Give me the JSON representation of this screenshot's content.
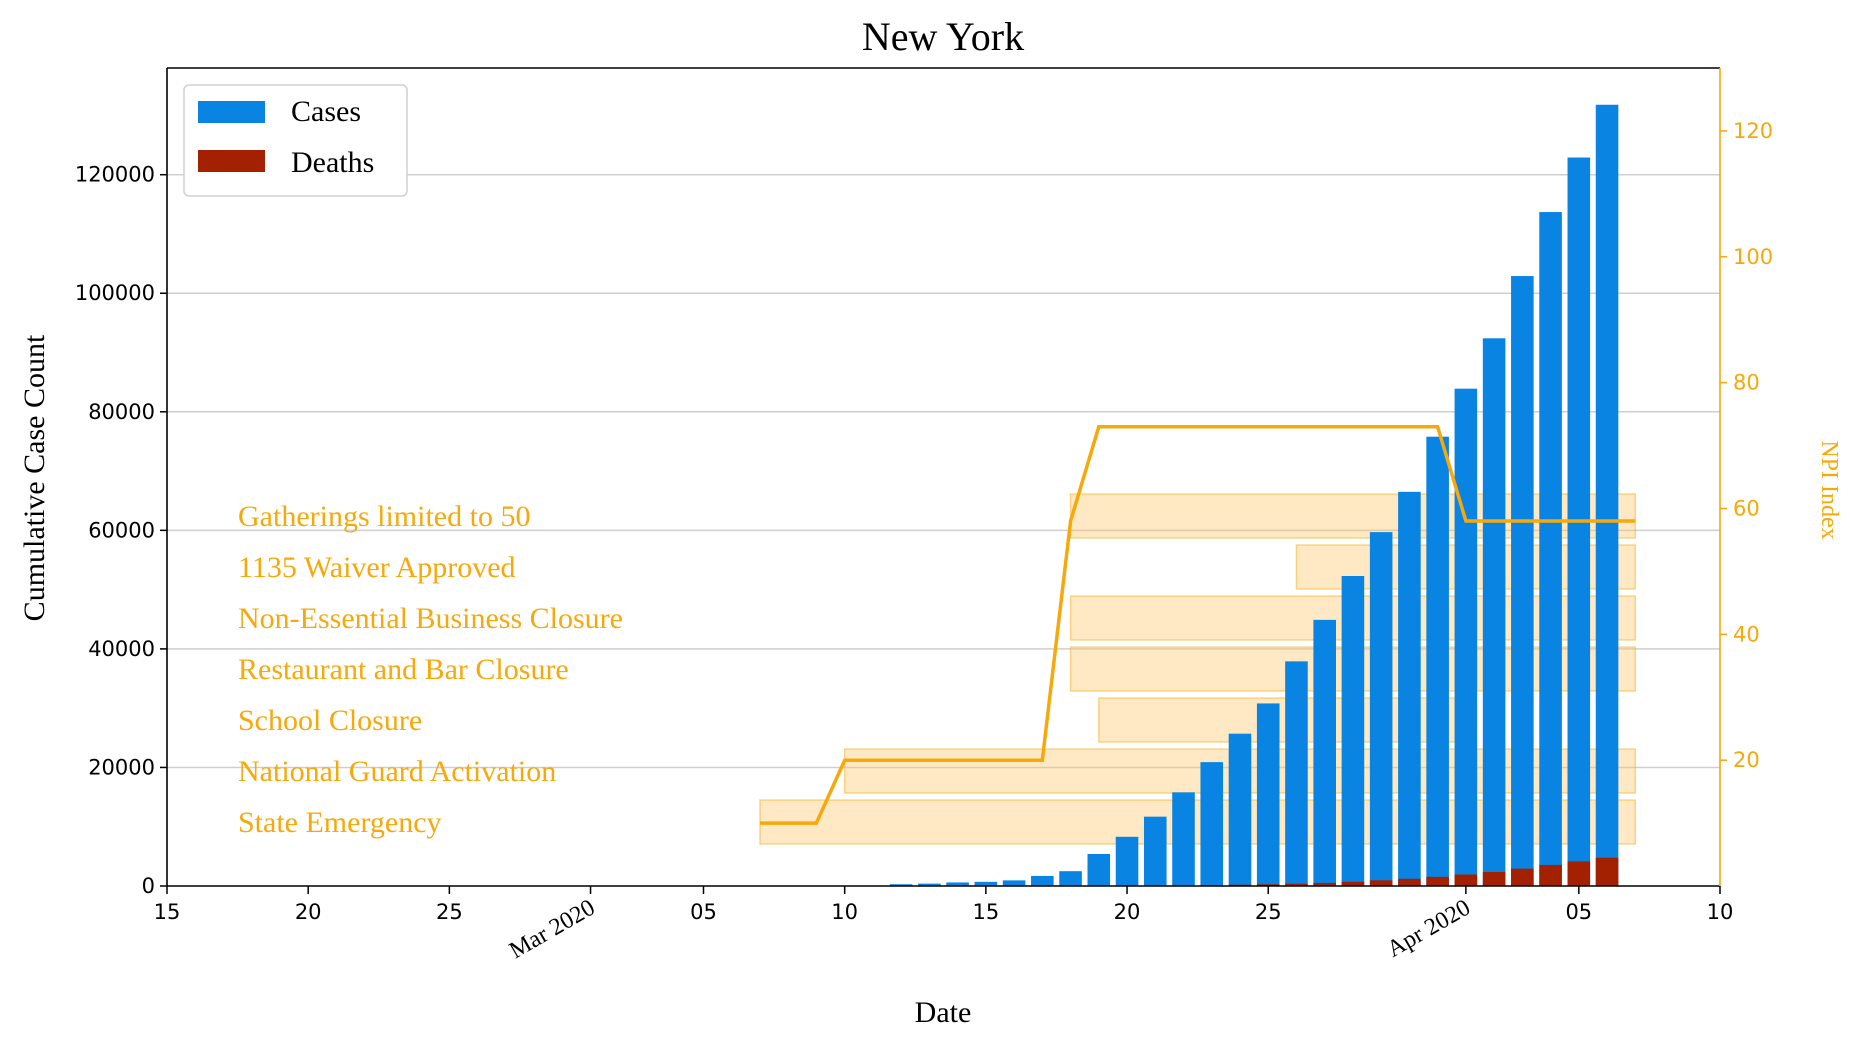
{
  "chart_data": {
    "type": "bar",
    "title": "New York",
    "xlabel": "Date",
    "ylabel": "Cumulative Case Count",
    "y2label": "NPI Index",
    "ylim": [
      0,
      138000
    ],
    "y2lim": [
      0,
      130
    ],
    "yticks": [
      0,
      20000,
      40000,
      60000,
      80000,
      100000,
      120000
    ],
    "y2ticks": [
      20,
      40,
      60,
      80,
      100,
      120
    ],
    "xlim": [
      "2020-02-15",
      "2020-04-10"
    ],
    "xticks": [
      {
        "date": "2020-02-15",
        "label": "15"
      },
      {
        "date": "2020-02-20",
        "label": "20"
      },
      {
        "date": "2020-02-25",
        "label": "25"
      },
      {
        "date": "2020-03-01",
        "label": "Mar 2020"
      },
      {
        "date": "2020-03-05",
        "label": "05"
      },
      {
        "date": "2020-03-10",
        "label": "10"
      },
      {
        "date": "2020-03-15",
        "label": "15"
      },
      {
        "date": "2020-03-20",
        "label": "20"
      },
      {
        "date": "2020-03-25",
        "label": "25"
      },
      {
        "date": "2020-04-01",
        "label": "Apr 2020"
      },
      {
        "date": "2020-04-05",
        "label": "05"
      },
      {
        "date": "2020-04-10",
        "label": "10"
      }
    ],
    "grid": "horizontal",
    "legend_position": "top-left",
    "colors": {
      "cases": "#0a84e3",
      "deaths": "#a32000",
      "npi": "#f7a80a"
    },
    "series": [
      {
        "name": "Cases",
        "x": [
          "2020-03-12",
          "2020-03-13",
          "2020-03-14",
          "2020-03-15",
          "2020-03-16",
          "2020-03-17",
          "2020-03-18",
          "2020-03-19",
          "2020-03-20",
          "2020-03-21",
          "2020-03-22",
          "2020-03-23",
          "2020-03-24",
          "2020-03-25",
          "2020-03-26",
          "2020-03-27",
          "2020-03-28",
          "2020-03-29",
          "2020-03-30",
          "2020-03-31",
          "2020-04-01",
          "2020-04-02",
          "2020-04-03",
          "2020-04-04",
          "2020-04-05",
          "2020-04-06"
        ],
        "values": [
          300,
          400,
          600,
          700,
          950,
          1700,
          2500,
          5400,
          8300,
          11700,
          15800,
          20900,
          25700,
          30800,
          37900,
          44900,
          52300,
          59700,
          66500,
          75800,
          83900,
          92400,
          102900,
          113700,
          122900,
          131800
        ]
      },
      {
        "name": "Deaths",
        "x": [
          "2020-03-12",
          "2020-03-13",
          "2020-03-14",
          "2020-03-15",
          "2020-03-16",
          "2020-03-17",
          "2020-03-18",
          "2020-03-19",
          "2020-03-20",
          "2020-03-21",
          "2020-03-22",
          "2020-03-23",
          "2020-03-24",
          "2020-03-25",
          "2020-03-26",
          "2020-03-27",
          "2020-03-28",
          "2020-03-29",
          "2020-03-30",
          "2020-03-31",
          "2020-04-01",
          "2020-04-02",
          "2020-04-03",
          "2020-04-04",
          "2020-04-05",
          "2020-04-06"
        ],
        "values": [
          0,
          0,
          0,
          0,
          10,
          15,
          20,
          30,
          40,
          60,
          110,
          160,
          220,
          290,
          380,
          520,
          730,
          960,
          1220,
          1550,
          1940,
          2370,
          2930,
          3560,
          4160,
          4760
        ]
      }
    ],
    "npi_index": {
      "name": "NPI Index",
      "x": [
        "2020-03-07",
        "2020-03-09",
        "2020-03-10",
        "2020-03-17",
        "2020-03-18",
        "2020-03-19",
        "2020-03-31",
        "2020-04-01",
        "2020-04-07"
      ],
      "values": [
        10,
        10,
        20,
        20,
        58,
        73,
        73,
        58,
        58
      ]
    },
    "interventions": [
      {
        "label": "Gatherings limited to 50",
        "start": "2020-03-18",
        "end": "2020-04-07"
      },
      {
        "label": "1135 Waiver Approved",
        "start": "2020-03-26",
        "end": "2020-04-07"
      },
      {
        "label": "Non-Essential Business Closure",
        "start": "2020-03-18",
        "end": "2020-04-07"
      },
      {
        "label": "Restaurant and Bar Closure",
        "start": "2020-03-18",
        "end": "2020-04-07"
      },
      {
        "label": "School Closure",
        "start": "2020-03-19",
        "end": "2020-04-01"
      },
      {
        "label": "National Guard Activation",
        "start": "2020-03-10",
        "end": "2020-04-07"
      },
      {
        "label": "State Emergency",
        "start": "2020-03-07",
        "end": "2020-04-07"
      }
    ]
  }
}
